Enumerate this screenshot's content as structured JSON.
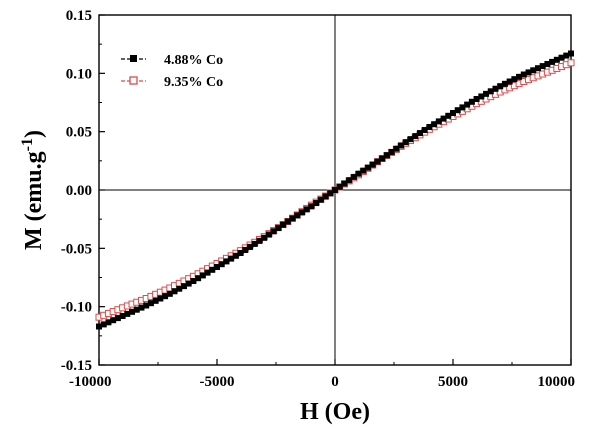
{
  "chart_data": {
    "type": "scatter",
    "title": "",
    "xlabel": "H (Oe)",
    "ylabel": {
      "main": "M (emu.g",
      "superscript": "-1",
      "close": ")"
    },
    "xlim": [
      -10000,
      10000
    ],
    "ylim": [
      -0.15,
      0.15
    ],
    "xticks": [
      -10000,
      -5000,
      0,
      5000,
      10000
    ],
    "xtick_labels": [
      "-10000",
      "-5000",
      "0",
      "5000",
      "10000"
    ],
    "yticks": [
      -0.15,
      -0.1,
      -0.05,
      0.0,
      0.05,
      0.1,
      0.15
    ],
    "ytick_labels": [
      "-0.15",
      "-0.10",
      "-0.05",
      "0.00",
      "0.05",
      "0.10",
      "0.15"
    ],
    "grid": false,
    "zero_lines": true,
    "legend_position": "top-left",
    "series": [
      {
        "name": "4.88% Co",
        "color": "#000000",
        "marker": "filled-square",
        "x": [
          -10000,
          -9000,
          -8000,
          -7000,
          -6000,
          -5000,
          -4000,
          -3000,
          -2000,
          -1000,
          0,
          1000,
          2000,
          3000,
          4000,
          5000,
          6000,
          7000,
          8000,
          9000,
          10000
        ],
        "y": [
          -0.117,
          -0.108,
          -0.099,
          -0.089,
          -0.078,
          -0.066,
          -0.054,
          -0.041,
          -0.027,
          -0.014,
          0.0,
          0.014,
          0.027,
          0.041,
          0.054,
          0.066,
          0.078,
          0.089,
          0.099,
          0.108,
          0.117
        ]
      },
      {
        "name": "9.35% Co",
        "color": "#e04848",
        "marker": "open-square",
        "x": [
          -10000,
          -9000,
          -8000,
          -7000,
          -6000,
          -5000,
          -4000,
          -3000,
          -2000,
          -1000,
          0,
          1000,
          2000,
          3000,
          4000,
          5000,
          6000,
          7000,
          8000,
          9000,
          10000
        ],
        "y": [
          -0.109,
          -0.101,
          -0.093,
          -0.084,
          -0.074,
          -0.063,
          -0.052,
          -0.04,
          -0.027,
          -0.013,
          0.0,
          0.013,
          0.027,
          0.04,
          0.052,
          0.063,
          0.074,
          0.084,
          0.093,
          0.101,
          0.109
        ]
      }
    ]
  }
}
